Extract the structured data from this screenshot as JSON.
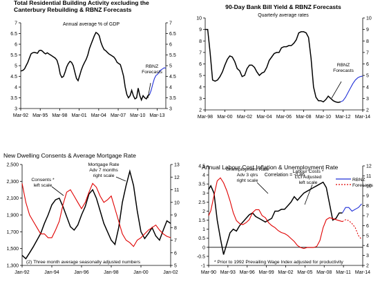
{
  "chart_data": [
    {
      "type": "line",
      "title_lines": [
        "Total Residential Building Activity excluding the",
        "Canterbury Rebuilding & RBNZ Forecasts"
      ],
      "subtitle": "Annual average % of GDP",
      "categories": [
        "Mar-92",
        "Mar-95",
        "Mar-98",
        "Mar-01",
        "Mar-04",
        "Mar-07",
        "Mar-10",
        "Mar-13"
      ],
      "ylim": [
        3,
        7
      ],
      "y_ticks": [
        "3",
        "3.5",
        "4",
        "4.5",
        "5",
        "5.5",
        "6",
        "6.5",
        "7"
      ],
      "annotations": [
        {
          "lines": [
            "RBNZ",
            "Forecasts"
          ]
        }
      ],
      "series": [
        {
          "color": "#000000",
          "role": "actual",
          "x": [
            1992.17,
            1992.5,
            1992.75,
            1993.0,
            1993.25,
            1993.5,
            1993.75,
            1994.0,
            1994.25,
            1994.5,
            1994.75,
            1995.0,
            1995.25,
            1995.5,
            1995.75,
            1996.0,
            1996.25,
            1996.5,
            1996.75,
            1997.0,
            1997.25,
            1997.5,
            1997.75,
            1998.0,
            1998.25,
            1998.5,
            1998.75,
            1999.0,
            1999.25,
            1999.5,
            1999.75,
            2000.0,
            2000.25,
            2000.5,
            2000.75,
            2001.0,
            2001.25,
            2001.5,
            2001.75,
            2002.0,
            2002.25,
            2002.5,
            2002.75,
            2003.0,
            2003.25,
            2003.5,
            2003.75,
            2004.0,
            2004.25,
            2004.5,
            2004.75,
            2005.0,
            2005.25,
            2005.5,
            2005.75,
            2006.0,
            2006.25,
            2006.5,
            2006.75,
            2007.0,
            2007.25,
            2007.5,
            2007.75,
            2008.0,
            2008.25,
            2008.5,
            2008.75,
            2009.0,
            2009.25,
            2009.5,
            2009.75,
            2010.0,
            2010.25,
            2010.5,
            2010.75,
            2011.0,
            2011.25,
            2011.5,
            2011.75,
            2012.0
          ],
          "y": [
            4.75,
            4.78,
            4.85,
            5.0,
            5.15,
            5.35,
            5.55,
            5.6,
            5.62,
            5.6,
            5.58,
            5.7,
            5.72,
            5.68,
            5.6,
            5.55,
            5.6,
            5.55,
            5.5,
            5.45,
            5.4,
            5.35,
            5.25,
            5.0,
            4.6,
            4.45,
            4.5,
            4.7,
            4.95,
            5.1,
            5.2,
            5.15,
            5.0,
            4.7,
            4.4,
            4.3,
            4.55,
            4.8,
            5.0,
            5.15,
            5.3,
            5.5,
            5.8,
            6.0,
            6.2,
            6.4,
            6.55,
            6.5,
            6.4,
            6.1,
            5.9,
            5.75,
            5.7,
            5.62,
            5.55,
            5.5,
            5.45,
            5.4,
            5.3,
            5.15,
            5.1,
            5.05,
            4.8,
            4.5,
            4.0,
            3.65,
            3.5,
            3.6,
            3.85,
            3.6,
            3.45,
            3.5,
            3.95,
            3.6,
            3.4,
            3.6,
            3.5,
            3.45,
            3.6,
            3.65
          ]
        },
        {
          "color": "#1f2fd8",
          "role": "forecast",
          "x": [
            2012.0,
            2012.25,
            2012.5,
            2012.75,
            2013.0,
            2013.25,
            2013.5,
            2013.75,
            2014.0,
            2014.25,
            2014.5
          ],
          "y": [
            3.65,
            3.85,
            4.15,
            4.4,
            4.55,
            4.6,
            4.72,
            4.8,
            4.85,
            4.9,
            4.88
          ]
        }
      ]
    },
    {
      "type": "line",
      "title_lines": [
        "90-Day Bank Bill Yield & RBNZ Forecasts"
      ],
      "subtitle": "Quarterly average rates",
      "categories": [
        "Mar-98",
        "Mar-00",
        "Mar-02",
        "Mar-04",
        "Mar-06",
        "Mar-08",
        "Mar-10",
        "Mar-12",
        "Mar-14"
      ],
      "ylim": [
        2,
        10
      ],
      "y_ticks": [
        "2",
        "3",
        "4",
        "5",
        "6",
        "7",
        "8",
        "9",
        "10"
      ],
      "annotations": [
        {
          "lines": [
            "RBNZ",
            "Forecasts"
          ]
        }
      ],
      "series": [
        {
          "color": "#000000",
          "role": "actual",
          "x": [
            1998.17,
            1998.42,
            1998.67,
            1998.92,
            1999.17,
            1999.42,
            1999.67,
            1999.92,
            2000.17,
            2000.42,
            2000.67,
            2000.92,
            2001.17,
            2001.42,
            2001.67,
            2001.92,
            2002.17,
            2002.42,
            2002.67,
            2002.92,
            2003.17,
            2003.42,
            2003.67,
            2003.92,
            2004.17,
            2004.42,
            2004.67,
            2004.92,
            2005.17,
            2005.42,
            2005.67,
            2005.92,
            2006.17,
            2006.42,
            2006.67,
            2006.92,
            2007.17,
            2007.42,
            2007.67,
            2007.92,
            2008.17,
            2008.42,
            2008.67,
            2008.92,
            2009.17,
            2009.42,
            2009.67,
            2009.92,
            2010.17,
            2010.42,
            2010.67,
            2010.92,
            2011.17,
            2011.42,
            2011.67,
            2011.92
          ],
          "y": [
            9.0,
            9.0,
            7.0,
            4.6,
            4.5,
            4.6,
            4.9,
            5.3,
            5.9,
            6.4,
            6.7,
            6.6,
            6.2,
            5.6,
            5.4,
            4.9,
            5.0,
            5.6,
            5.9,
            5.9,
            5.7,
            5.3,
            5.0,
            5.2,
            5.3,
            5.7,
            6.3,
            6.6,
            6.9,
            7.0,
            7.0,
            7.4,
            7.5,
            7.5,
            7.6,
            7.6,
            7.8,
            8.1,
            8.7,
            8.8,
            8.8,
            8.7,
            8.3,
            6.5,
            4.0,
            3.1,
            2.8,
            2.8,
            2.7,
            2.9,
            3.2,
            3.0,
            2.8,
            2.7,
            2.65,
            2.7
          ]
        },
        {
          "color": "#1f2fd8",
          "role": "forecast",
          "x": [
            2011.92,
            2012.17,
            2012.42,
            2012.67,
            2012.92,
            2013.17,
            2013.42,
            2013.67,
            2013.92,
            2014.17
          ],
          "y": [
            2.7,
            2.8,
            3.1,
            3.5,
            3.9,
            4.3,
            4.6,
            4.8,
            4.9,
            4.95
          ]
        }
      ]
    },
    {
      "type": "line",
      "title_lines": [
        "New Dwelling Consents & Average Mortgage Rate"
      ],
      "categories": [
        "Jan-92",
        "Jan-94",
        "Jan-96",
        "Jan-98",
        "Jan-00",
        "Jan-02"
      ],
      "ylim_left": [
        1300,
        2500
      ],
      "ylim_right": [
        5,
        13
      ],
      "y_ticks_left": [
        "1,300",
        "1,500",
        "1,700",
        "1,900",
        "2,100",
        "2,300",
        "2,500"
      ],
      "y_ticks_right": [
        "5",
        "6",
        "7",
        "8",
        "9",
        "10",
        "11",
        "12",
        "13"
      ],
      "footnote": "(2) Three month average seasonally adjusted numbers",
      "annotations": [
        {
          "lines": [
            "Consents *",
            "left scale"
          ]
        },
        {
          "lines": [
            "Mortgage Rate",
            "Adv 7 months",
            "right scale"
          ]
        }
      ],
      "series": [
        {
          "color": "#000000",
          "axis": "left",
          "x": [
            1992.0,
            1992.25,
            1992.5,
            1992.75,
            1993.0,
            1993.25,
            1993.5,
            1993.75,
            1994.0,
            1994.25,
            1994.5,
            1994.75,
            1995.0,
            1995.25,
            1995.5,
            1995.75,
            1996.0,
            1996.25,
            1996.5,
            1996.75,
            1997.0,
            1997.25,
            1997.5,
            1997.75,
            1998.0,
            1998.25,
            1998.5,
            1998.75,
            1999.0,
            1999.25,
            1999.5,
            1999.75,
            2000.0,
            2000.25,
            2000.5,
            2000.75,
            2001.0,
            2001.25,
            2001.5,
            2001.75,
            2002.0
          ],
          "y": [
            1420,
            1380,
            1450,
            1520,
            1600,
            1680,
            1800,
            1900,
            2020,
            2080,
            2100,
            2000,
            1880,
            1760,
            1720,
            1780,
            1900,
            2000,
            2150,
            2200,
            2100,
            1950,
            1800,
            1700,
            1600,
            1550,
            1750,
            2050,
            2250,
            2420,
            2250,
            1950,
            1700,
            1620,
            1680,
            1750,
            1650,
            1600,
            1720,
            1830,
            1800
          ]
        },
        {
          "color": "#e00000",
          "axis": "right",
          "x": [
            1992.0,
            1992.25,
            1992.5,
            1992.75,
            1993.0,
            1993.25,
            1993.5,
            1993.75,
            1994.0,
            1994.25,
            1994.5,
            1994.75,
            1995.0,
            1995.25,
            1995.5,
            1995.75,
            1996.0,
            1996.25,
            1996.5,
            1996.75,
            1997.0,
            1997.25,
            1997.5,
            1997.75,
            1998.0,
            1998.25,
            1998.5,
            1998.75,
            1999.0,
            1999.25,
            1999.5,
            1999.75,
            2000.0,
            2000.25,
            2000.5,
            2000.75,
            2001.0,
            2001.25,
            2001.5,
            2001.75,
            2002.0
          ],
          "y": [
            11.5,
            10.0,
            9.0,
            8.5,
            8.0,
            7.5,
            7.5,
            7.2,
            7.2,
            7.8,
            8.5,
            9.8,
            10.8,
            11.0,
            10.5,
            10.0,
            9.5,
            10.0,
            10.8,
            11.5,
            11.2,
            10.5,
            10.0,
            10.2,
            10.5,
            9.5,
            8.5,
            7.5,
            7.0,
            6.8,
            6.5,
            7.0,
            7.2,
            7.5,
            7.8,
            8.0,
            8.2,
            7.8,
            7.5,
            7.3,
            7.2
          ]
        }
      ]
    },
    {
      "type": "line",
      "title_lines": [
        "Annual Labour Cost Inflation & Unemployment Rate"
      ],
      "subtitle": "Correlation = -0.86",
      "categories": [
        "Mar-90",
        "Mar-93",
        "Mar-96",
        "Mar-99",
        "Mar-02",
        "Mar-05",
        "Mar-08",
        "Mar-11",
        "Mar-14"
      ],
      "ylim_left": [
        -1,
        4.5
      ],
      "ylim_right": [
        2,
        12
      ],
      "y_ticks_left": [
        "-1",
        "-0.5",
        "0",
        "0.5",
        "1",
        "1.5",
        "2",
        "2.5",
        "3",
        "3.5",
        "4",
        "4.5"
      ],
      "y_ticks_right": [
        "2",
        "3",
        "4",
        "5",
        "6",
        "7",
        "8",
        "9",
        "10",
        "11",
        "12"
      ],
      "footnote": "* Prior to 1992 Prevailing Wage Index adjusted for productivity",
      "legend": [
        "RBNZ",
        "Forecasts"
      ],
      "annotations": [
        {
          "lines": [
            "Unemployment Rate",
            "Adv 3 qtrs",
            "right scale"
          ]
        },
        {
          "lines": [
            "Labour Costs *",
            "LCI Adjusted",
            "left scale"
          ]
        }
      ],
      "series": [
        {
          "color": "#000000",
          "axis": "left",
          "role": "actual",
          "x": [
            1990.17,
            1990.5,
            1991.0,
            1991.5,
            1992.0,
            1992.5,
            1993.0,
            1993.5,
            1994.0,
            1994.5,
            1995.0,
            1995.5,
            1996.0,
            1996.5,
            1997.0,
            1997.5,
            1998.0,
            1998.5,
            1999.0,
            1999.5,
            2000.0,
            2000.5,
            2001.0,
            2001.5,
            2002.0,
            2002.5,
            2003.0,
            2003.5,
            2004.0,
            2004.5,
            2005.0,
            2005.5,
            2006.0,
            2006.5,
            2007.0,
            2007.5,
            2008.0,
            2008.5,
            2009.0,
            2009.5,
            2010.0,
            2010.5,
            2011.0
          ],
          "y": [
            3.2,
            3.4,
            3.0,
            1.5,
            0.5,
            -0.4,
            0.2,
            0.8,
            1.0,
            0.9,
            1.2,
            1.4,
            1.6,
            1.8,
            1.9,
            1.7,
            1.6,
            1.5,
            1.4,
            1.5,
            1.6,
            2.0,
            2.0,
            2.1,
            2.1,
            2.3,
            2.5,
            2.8,
            2.6,
            2.8,
            3.0,
            3.1,
            3.2,
            3.3,
            3.4,
            3.5,
            3.6,
            3.3,
            2.4,
            1.5,
            1.6,
            1.9,
            1.9
          ]
        },
        {
          "color": "#1f2fd8",
          "axis": "left",
          "role": "forecast",
          "x": [
            2011.0,
            2011.5,
            2012.0,
            2012.5,
            2013.0,
            2013.5,
            2014.0
          ],
          "y": [
            1.9,
            2.2,
            2.2,
            2.0,
            2.1,
            2.2,
            2.4
          ]
        },
        {
          "color": "#e00000",
          "axis": "right",
          "role": "actual",
          "x": [
            1990.17,
            1990.5,
            1991.0,
            1991.5,
            1992.0,
            1992.5,
            1993.0,
            1993.5,
            1994.0,
            1994.5,
            1995.0,
            1995.5,
            1996.0,
            1996.5,
            1997.0,
            1997.5,
            1998.0,
            1998.5,
            1999.0,
            1999.5,
            2000.0,
            2000.5,
            2001.0,
            2001.5,
            2002.0,
            2002.5,
            2003.0,
            2003.5,
            2004.0,
            2004.5,
            2005.0,
            2005.5,
            2006.0,
            2006.5,
            2007.0,
            2007.5,
            2008.0,
            2008.5,
            2009.0,
            2009.5,
            2010.0,
            2010.5,
            2011.0
          ],
          "y": [
            7.0,
            7.5,
            9.0,
            10.5,
            10.8,
            10.3,
            9.5,
            8.5,
            7.3,
            6.5,
            6.2,
            6.1,
            6.3,
            6.6,
            7.3,
            7.6,
            7.6,
            7.0,
            6.8,
            6.3,
            6.0,
            5.8,
            5.5,
            5.3,
            5.2,
            5.0,
            4.7,
            4.4,
            4.0,
            3.8,
            3.7,
            3.8,
            3.8,
            3.8,
            3.9,
            4.5,
            5.8,
            6.6,
            6.8,
            6.7,
            6.6,
            6.5,
            6.4
          ]
        },
        {
          "color": "#e00000",
          "axis": "right",
          "role": "forecast",
          "x": [
            2011.0,
            2011.5,
            2012.0,
            2012.5,
            2013.0,
            2013.5,
            2014.0
          ],
          "y": [
            6.4,
            6.6,
            6.5,
            6.2,
            5.8,
            5.0,
            4.6
          ]
        }
      ]
    }
  ]
}
